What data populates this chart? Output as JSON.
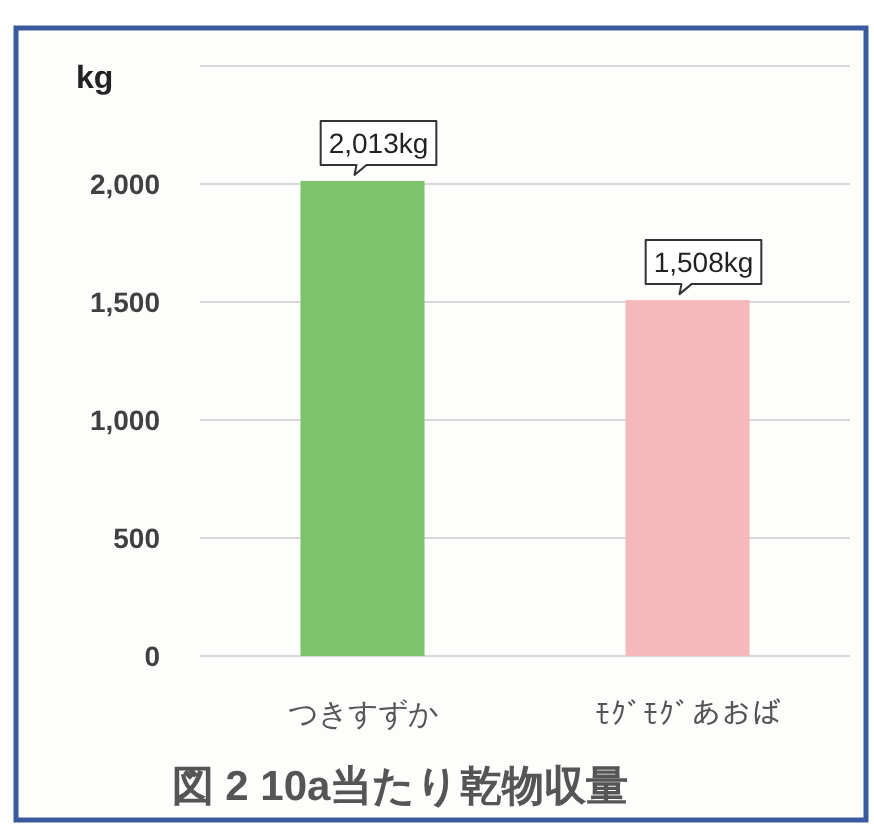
{
  "chart_data": {
    "type": "bar",
    "title": "図 2 10a当たり乾物収量",
    "ylabel": "kg",
    "categories": [
      "つきすずか",
      "ﾓｸﾞﾓｸﾞあおば"
    ],
    "values": [
      2013,
      1508
    ],
    "colors": [
      "#7dc36b",
      "#f6b9b9"
    ],
    "value_labels": [
      "2,013kg",
      "1,508kg"
    ],
    "ylim": [
      0,
      2500
    ],
    "yticks": [
      {
        "value": 0,
        "label": "0"
      },
      {
        "value": 500,
        "label": "500"
      },
      {
        "value": 1000,
        "label": "1,000"
      },
      {
        "value": 1500,
        "label": "1,500"
      },
      {
        "value": 2000,
        "label": "2,000"
      },
      {
        "value": 2500,
        "label": null
      }
    ],
    "grid": "y"
  }
}
